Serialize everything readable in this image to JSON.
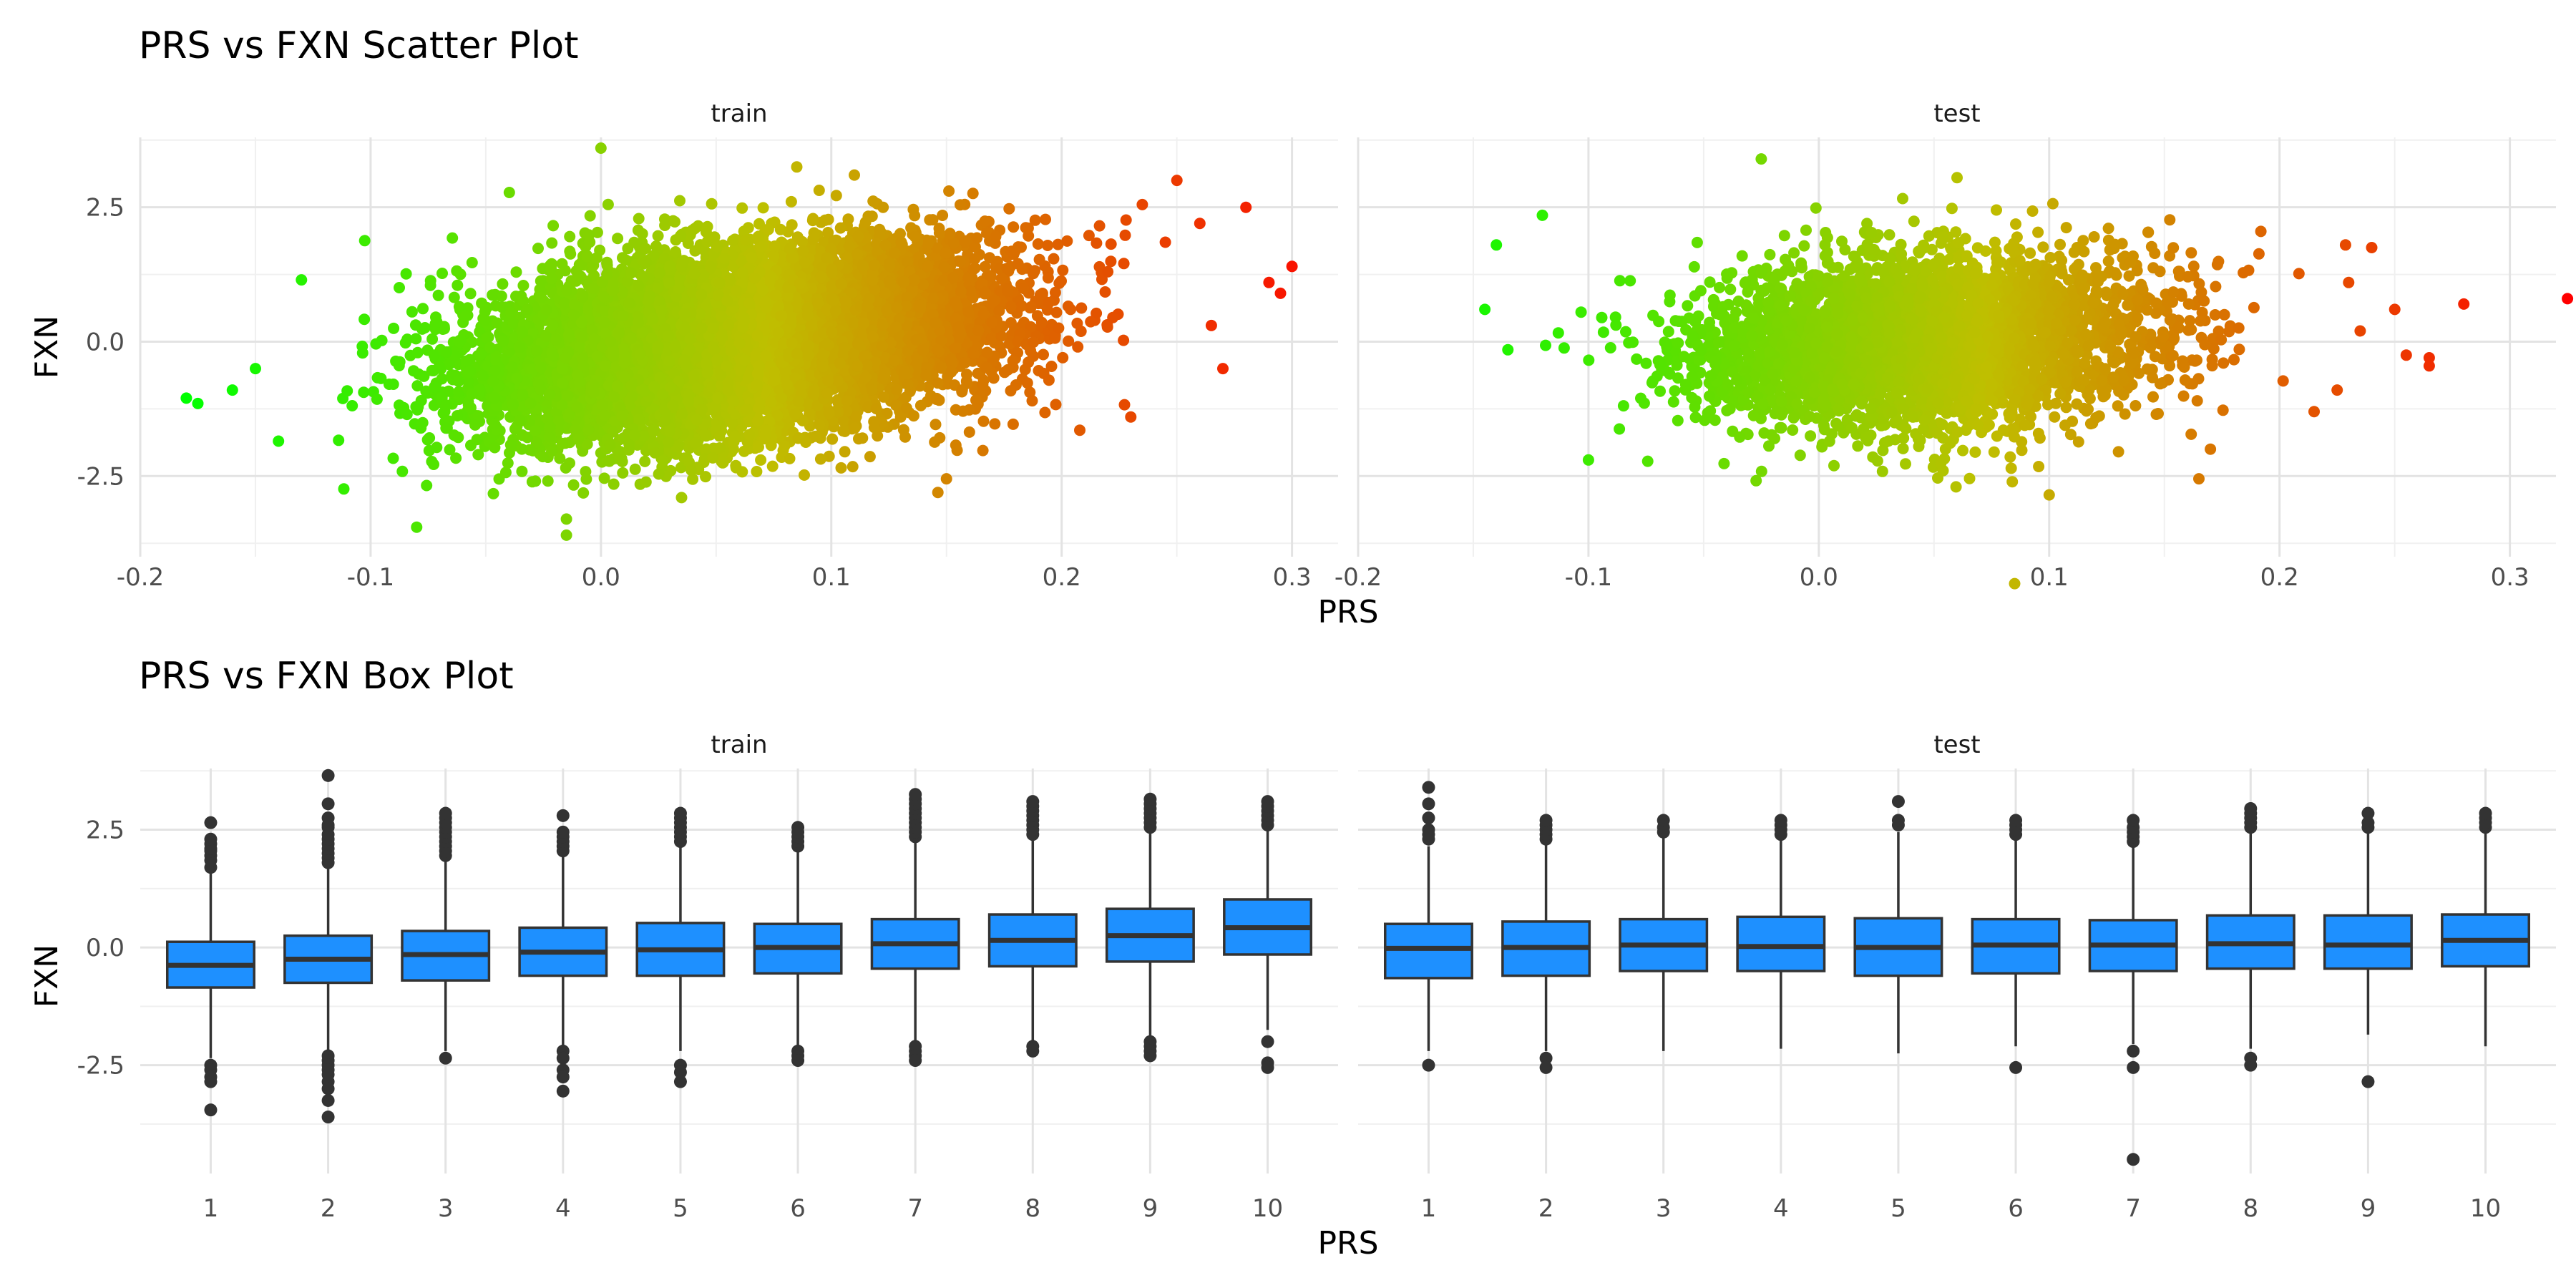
{
  "chart_data": [
    {
      "type": "scatter",
      "title": "PRS vs FXN Scatter Plot",
      "xlabel": "PRS",
      "ylabel": "FXN",
      "facets": [
        "train",
        "test"
      ],
      "xlim": [
        -0.2,
        0.32
      ],
      "ylim": [
        -4.0,
        3.8
      ],
      "x_ticks": [
        -0.2,
        -0.1,
        0.0,
        0.1,
        0.2,
        0.3
      ],
      "x_tick_labels": [
        "-0.2",
        "-0.1",
        "0.0",
        "0.1",
        "0.2",
        "0.3"
      ],
      "y_ticks": [
        -2.5,
        0.0,
        2.5
      ],
      "y_tick_labels": [
        "-2.5",
        "0.0",
        "2.5"
      ],
      "grid": true,
      "color_scale": {
        "low": "#00ff00",
        "mid": "#bfbf00",
        "high": "#ff0000"
      },
      "panels": [
        {
          "facet": "train",
          "cloud": {
            "x_mean": 0.06,
            "x_sd": 0.055,
            "y_mean": 0.0,
            "y_sd": 0.85,
            "slope": 5.0,
            "n": 9000
          },
          "extreme_points": [
            {
              "x": -0.18,
              "y": -1.05
            },
            {
              "x": -0.175,
              "y": -1.15
            },
            {
              "x": -0.16,
              "y": -0.9
            },
            {
              "x": -0.15,
              "y": -0.5
            },
            {
              "x": -0.14,
              "y": -1.85
            },
            {
              "x": -0.13,
              "y": 1.15
            },
            {
              "x": 0.22,
              "y": 1.3
            },
            {
              "x": 0.235,
              "y": 2.55
            },
            {
              "x": 0.245,
              "y": 1.85
            },
            {
              "x": 0.26,
              "y": 2.2
            },
            {
              "x": 0.28,
              "y": 2.5
            },
            {
              "x": 0.29,
              "y": 1.1
            },
            {
              "x": 0.295,
              "y": 0.9
            },
            {
              "x": 0.3,
              "y": 1.4
            },
            {
              "x": 0.265,
              "y": 0.3
            },
            {
              "x": 0.27,
              "y": -0.5
            },
            {
              "x": 0.25,
              "y": 3.0
            },
            {
              "x": 0.23,
              "y": -1.4
            },
            {
              "x": -0.08,
              "y": -3.45
            },
            {
              "x": -0.015,
              "y": -3.3
            },
            {
              "x": -0.015,
              "y": -3.6
            },
            {
              "x": 0.0,
              "y": 3.6
            },
            {
              "x": 0.085,
              "y": 3.25
            },
            {
              "x": 0.15,
              "y": -2.55
            },
            {
              "x": 0.11,
              "y": 3.1
            },
            {
              "x": 0.035,
              "y": -2.9
            }
          ]
        },
        {
          "facet": "test",
          "cloud": {
            "x_mean": 0.045,
            "x_sd": 0.05,
            "y_mean": 0.0,
            "y_sd": 0.8,
            "slope": 2.0,
            "n": 4000
          },
          "extreme_points": [
            {
              "x": -0.145,
              "y": 0.6
            },
            {
              "x": -0.14,
              "y": 1.8
            },
            {
              "x": -0.135,
              "y": -0.15
            },
            {
              "x": -0.12,
              "y": 2.35
            },
            {
              "x": -0.1,
              "y": -2.2
            },
            {
              "x": -0.025,
              "y": 3.4
            },
            {
              "x": 0.06,
              "y": 3.05
            },
            {
              "x": 0.085,
              "y": -4.5
            },
            {
              "x": 0.1,
              "y": -2.85
            },
            {
              "x": 0.24,
              "y": 1.75
            },
            {
              "x": 0.25,
              "y": 0.6
            },
            {
              "x": 0.255,
              "y": -0.25
            },
            {
              "x": 0.265,
              "y": -0.3
            },
            {
              "x": 0.265,
              "y": -0.45
            },
            {
              "x": 0.28,
              "y": 0.7
            },
            {
              "x": 0.325,
              "y": 0.8
            },
            {
              "x": 0.23,
              "y": 1.1
            },
            {
              "x": 0.215,
              "y": -1.3
            },
            {
              "x": 0.225,
              "y": -0.9
            },
            {
              "x": 0.17,
              "y": -2.0
            },
            {
              "x": 0.165,
              "y": -2.55
            },
            {
              "x": 0.235,
              "y": 0.2
            }
          ]
        }
      ]
    },
    {
      "type": "box",
      "title": "PRS vs FXN Box Plot",
      "xlabel": "PRS",
      "ylabel": "FXN",
      "facets": [
        "train",
        "test"
      ],
      "categories": [
        "1",
        "2",
        "3",
        "4",
        "5",
        "6",
        "7",
        "8",
        "9",
        "10"
      ],
      "ylim": [
        -4.8,
        3.8
      ],
      "y_ticks": [
        -2.5,
        0.0,
        2.5
      ],
      "y_tick_labels": [
        "-2.5",
        "0.0",
        "2.5"
      ],
      "grid": true,
      "box_color": "#1e90ff",
      "line_color": "#333333",
      "panels": [
        {
          "facet": "train",
          "boxes": [
            {
              "q1": -0.85,
              "median": -0.38,
              "q3": 0.12,
              "whisker_low": -2.35,
              "whisker_high": 1.58,
              "outliers": [
                1.7,
                1.85,
                1.95,
                2.05,
                2.1,
                2.2,
                2.3,
                2.65,
                -2.5,
                -2.6,
                -2.75,
                -2.85,
                -3.45
              ]
            },
            {
              "q1": -0.75,
              "median": -0.25,
              "q3": 0.25,
              "whisker_low": -2.2,
              "whisker_high": 1.7,
              "outliers": [
                1.8,
                1.9,
                2.0,
                2.1,
                2.2,
                2.3,
                2.4,
                2.55,
                2.6,
                2.75,
                3.05,
                3.65,
                -2.3,
                -2.4,
                -2.5,
                -2.6,
                -2.7,
                -2.85,
                -3.0,
                -3.25,
                -3.6
              ]
            },
            {
              "q1": -0.7,
              "median": -0.15,
              "q3": 0.35,
              "whisker_low": -2.2,
              "whisker_high": 1.85,
              "outliers": [
                1.95,
                2.05,
                2.15,
                2.25,
                2.35,
                2.45,
                2.55,
                2.65,
                2.75,
                2.85,
                -2.35
              ]
            },
            {
              "q1": -0.6,
              "median": -0.1,
              "q3": 0.42,
              "whisker_low": -2.15,
              "whisker_high": 1.95,
              "outliers": [
                2.05,
                2.15,
                2.25,
                2.35,
                2.45,
                2.8,
                -2.2,
                -2.35,
                -2.6,
                -2.75,
                -3.05
              ]
            },
            {
              "q1": -0.6,
              "median": -0.05,
              "q3": 0.52,
              "whisker_low": -2.2,
              "whisker_high": 2.15,
              "outliers": [
                2.25,
                2.35,
                2.45,
                2.55,
                2.65,
                2.75,
                2.85,
                -2.5,
                -2.65,
                -2.85
              ]
            },
            {
              "q1": -0.55,
              "median": 0.0,
              "q3": 0.5,
              "whisker_low": -2.15,
              "whisker_high": 2.05,
              "outliers": [
                2.15,
                2.25,
                2.35,
                2.45,
                2.55,
                -2.2,
                -2.3,
                -2.4
              ]
            },
            {
              "q1": -0.45,
              "median": 0.08,
              "q3": 0.6,
              "whisker_low": -2.05,
              "whisker_high": 2.25,
              "outliers": [
                2.35,
                2.45,
                2.55,
                2.65,
                2.75,
                2.85,
                2.95,
                3.05,
                3.15,
                3.25,
                -2.1,
                -2.2,
                -2.3,
                -2.4
              ]
            },
            {
              "q1": -0.4,
              "median": 0.15,
              "q3": 0.7,
              "whisker_low": -2.05,
              "whisker_high": 2.3,
              "outliers": [
                2.4,
                2.5,
                2.6,
                2.7,
                2.8,
                2.9,
                3.0,
                3.1,
                -2.1,
                -2.2
              ]
            },
            {
              "q1": -0.3,
              "median": 0.25,
              "q3": 0.82,
              "whisker_low": -1.9,
              "whisker_high": 2.45,
              "outliers": [
                2.55,
                2.65,
                2.75,
                2.85,
                2.95,
                3.05,
                3.15,
                -2.0,
                -2.1,
                -2.2,
                -2.3
              ]
            },
            {
              "q1": -0.15,
              "median": 0.42,
              "q3": 1.02,
              "whisker_low": -1.75,
              "whisker_high": 2.5,
              "outliers": [
                2.6,
                2.7,
                2.8,
                2.9,
                3.0,
                3.1,
                -2.0,
                -2.45,
                -2.55
              ]
            }
          ]
        },
        {
          "facet": "test",
          "boxes": [
            {
              "q1": -0.65,
              "median": -0.02,
              "q3": 0.5,
              "whisker_low": -2.2,
              "whisker_high": 2.15,
              "outliers": [
                2.3,
                2.4,
                2.5,
                2.75,
                3.05,
                3.4,
                -2.5
              ]
            },
            {
              "q1": -0.6,
              "median": 0.0,
              "q3": 0.55,
              "whisker_low": -2.2,
              "whisker_high": 2.2,
              "outliers": [
                2.3,
                2.4,
                2.5,
                2.6,
                2.7,
                -2.35,
                -2.55
              ]
            },
            {
              "q1": -0.5,
              "median": 0.05,
              "q3": 0.6,
              "whisker_low": -2.2,
              "whisker_high": 2.35,
              "outliers": [
                2.45,
                2.55,
                2.7
              ]
            },
            {
              "q1": -0.5,
              "median": 0.02,
              "q3": 0.65,
              "whisker_low": -2.15,
              "whisker_high": 2.3,
              "outliers": [
                2.4,
                2.5,
                2.6,
                2.7
              ]
            },
            {
              "q1": -0.6,
              "median": 0.0,
              "q3": 0.62,
              "whisker_low": -2.25,
              "whisker_high": 2.45,
              "outliers": [
                2.6,
                2.7,
                3.1
              ]
            },
            {
              "q1": -0.55,
              "median": 0.05,
              "q3": 0.6,
              "whisker_low": -2.1,
              "whisker_high": 2.3,
              "outliers": [
                2.4,
                2.5,
                2.6,
                2.7,
                -2.55
              ]
            },
            {
              "q1": -0.5,
              "median": 0.05,
              "q3": 0.58,
              "whisker_low": -2.05,
              "whisker_high": 2.15,
              "outliers": [
                2.25,
                2.35,
                2.45,
                2.55,
                2.7,
                -2.2,
                -2.55,
                -4.5
              ]
            },
            {
              "q1": -0.45,
              "median": 0.08,
              "q3": 0.68,
              "whisker_low": -2.15,
              "whisker_high": 2.45,
              "outliers": [
                2.55,
                2.65,
                2.75,
                2.85,
                2.95,
                -2.35,
                -2.5
              ]
            },
            {
              "q1": -0.45,
              "median": 0.05,
              "q3": 0.68,
              "whisker_low": -1.85,
              "whisker_high": 2.45,
              "outliers": [
                2.55,
                2.65,
                2.85,
                -2.85
              ]
            },
            {
              "q1": -0.4,
              "median": 0.15,
              "q3": 0.7,
              "whisker_low": -2.1,
              "whisker_high": 2.45,
              "outliers": [
                2.55,
                2.65,
                2.75,
                2.85
              ]
            }
          ]
        }
      ]
    }
  ]
}
